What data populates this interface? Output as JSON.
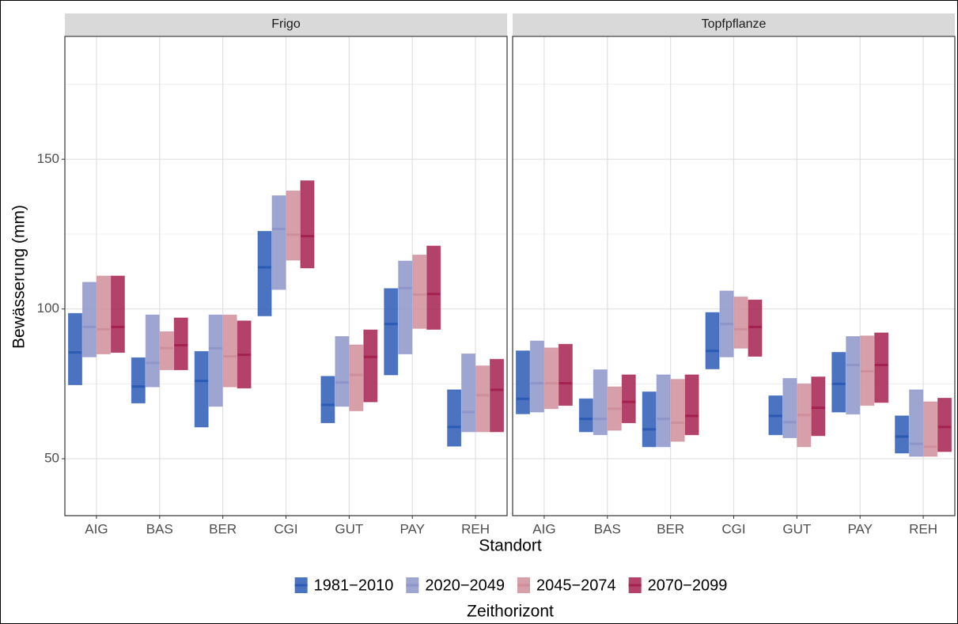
{
  "chart_data": {
    "type": "crossbar",
    "y_label": "Bewässerung (mm)",
    "x_label": "Standort",
    "legend_title": "Zeithorizont",
    "categories": [
      "AIG",
      "BAS",
      "BER",
      "CGI",
      "GUT",
      "PAY",
      "REH"
    ],
    "series": [
      {
        "name": "1981−2010",
        "color": "#2b5bb5"
      },
      {
        "name": "2020−2049",
        "color": "#8d95c9"
      },
      {
        "name": "2045−2074",
        "color": "#cf8e9b"
      },
      {
        "name": "2070−2099",
        "color": "#a4214f"
      }
    ],
    "ylim": [
      31,
      191
    ],
    "yticks": [
      50,
      100,
      150
    ],
    "y_minor_ticks": [
      75,
      125,
      175
    ],
    "grid": true,
    "facets": [
      {
        "title": "Frigo",
        "series": [
          {
            "low": [
              74.7,
              68.6,
              60.6,
              97.7,
              62,
              78,
              54.2
            ],
            "mid": [
              85.5,
              74.1,
              76,
              113.9,
              68,
              95,
              60.6
            ],
            "high": [
              98.5,
              83.7,
              85.8,
              125.9,
              77.5,
              106.8,
              73
            ]
          },
          {
            "low": [
              84,
              74,
              67.5,
              106.5,
              67.5,
              85,
              59
            ],
            "mid": [
              94,
              82,
              86.9,
              126.7,
              75.5,
              107,
              65.6
            ],
            "high": [
              108.9,
              98,
              98,
              137.8,
              90.8,
              116,
              85
            ]
          },
          {
            "low": [
              85,
              79.7,
              74,
              116.3,
              66,
              93.5,
              59
            ],
            "mid": [
              93.2,
              86.9,
              84.2,
              124.8,
              78,
              104.8,
              71.2
            ],
            "high": [
              111,
              92.4,
              98,
              139.4,
              88,
              118,
              81
            ]
          },
          {
            "low": [
              85.5,
              79.7,
              73.6,
              113.7,
              69,
              93.2,
              59
            ],
            "mid": [
              94,
              87.9,
              84.7,
              124.3,
              84,
              105,
              73
            ],
            "high": [
              111,
              97,
              96,
              142.8,
              93,
              121,
              83.2
            ]
          }
        ]
      },
      {
        "title": "Topfpflanze",
        "series": [
          {
            "low": [
              65,
              59,
              54,
              80,
              58,
              65.6,
              51.9
            ],
            "mid": [
              70,
              63.3,
              59.8,
              86,
              64.3,
              75,
              57.4
            ],
            "high": [
              86,
              70,
              72.3,
              98.8,
              71,
              85.5,
              64.3
            ]
          },
          {
            "low": [
              65.6,
              58,
              54,
              84,
              57,
              64.9,
              50.8
            ],
            "mid": [
              75.2,
              63.3,
              63.3,
              95,
              62.2,
              81.3,
              55
            ],
            "high": [
              89.3,
              79.7,
              78,
              106,
              76.8,
              90.8,
              73
            ]
          },
          {
            "low": [
              66.7,
              59.5,
              55.8,
              86.9,
              54,
              67.8,
              50.8
            ],
            "mid": [
              75.2,
              66.7,
              62,
              93.2,
              64.6,
              79.2,
              54
            ],
            "high": [
              87,
              74,
              76.5,
              104,
              75,
              91,
              69
            ]
          },
          {
            "low": [
              67.8,
              62,
              58,
              84.2,
              57.7,
              68.8,
              52.4
            ],
            "mid": [
              75.2,
              69,
              64.3,
              94,
              67,
              81.3,
              60.6
            ],
            "high": [
              88.2,
              78,
              78,
              103,
              77.3,
              92,
              70.2
            ]
          }
        ]
      }
    ]
  }
}
